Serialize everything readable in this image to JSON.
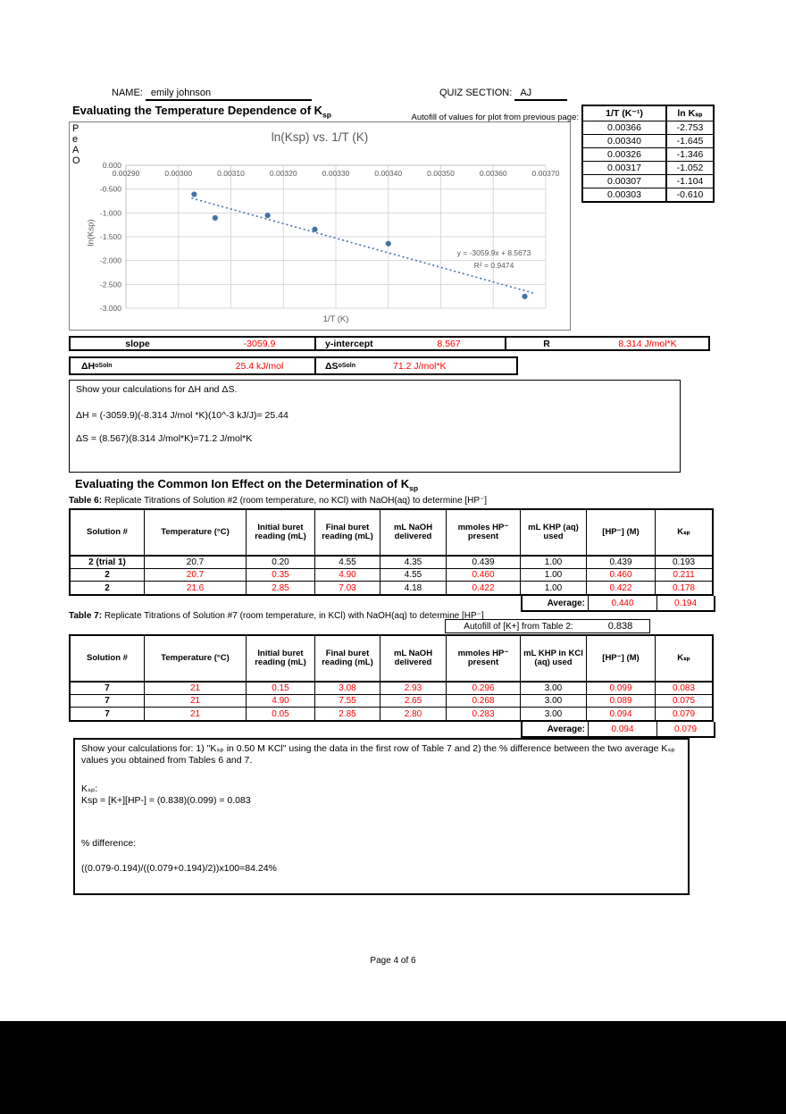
{
  "header": {
    "name_label": "NAME:",
    "name_value": "emily johnson",
    "quiz_label": "QUIZ SECTION:",
    "quiz_value": "AJ"
  },
  "section_ksp": {
    "title": "Evaluating the Temperature Dependence of K",
    "title_sub": "sp",
    "autofill_note": "Autofill of values for plot from previous page:",
    "side_table": {
      "headers": [
        "1/T   (K⁻¹)",
        "ln Kₛₚ"
      ],
      "rows": [
        [
          "0.00366",
          "-2.753"
        ],
        [
          "0.00340",
          "-1.645"
        ],
        [
          "0.00326",
          "-1.346"
        ],
        [
          "0.00317",
          "-1.052"
        ],
        [
          "0.00307",
          "-1.104"
        ],
        [
          "0.00303",
          "-0.610"
        ]
      ]
    },
    "results": {
      "slope_label": "slope",
      "slope_value": "-3059.9",
      "yint_label": "y-intercept",
      "yint_value": "8.567",
      "r_label": "R",
      "r_value": "8.314 J/mol*K",
      "dh_label_base": "ΔH",
      "dh_sup": "o",
      "dh_sub": "Soln",
      "dh_value": "25.4 kJ/mol",
      "ds_label_base": "ΔS",
      "ds_sup": "o",
      "ds_sub": "Soln",
      "ds_value": "71.2 J/mol*K"
    },
    "calc_box": {
      "prompt": "Show your calculations for ΔH  and  ΔS.",
      "line1": "ΔH = (-3059.9)(-8.314 J/mol *K)(10^-3 kJ/J)= 25.44",
      "line2": "ΔS = (8.567)(8.314 J/mol*K)=71.2 J/mol*K"
    }
  },
  "chart_data": {
    "type": "scatter",
    "title": "ln(Ksp)  vs.  1/T (K)",
    "xlabel": "1/T (K)",
    "ylabel": "ln(Ksp)",
    "xlim": [
      0.0029,
      0.0037
    ],
    "ylim": [
      -3.0,
      0.0
    ],
    "grid": true,
    "legend": "none",
    "overlay_letters": [
      "P",
      "e",
      "A",
      "O"
    ],
    "x_ticks": [
      {
        "v": 0.0029,
        "label": "0.00290"
      },
      {
        "v": 0.003,
        "label": "0.00300"
      },
      {
        "v": 0.0031,
        "label": "0.00310"
      },
      {
        "v": 0.0032,
        "label": "0.00320"
      },
      {
        "v": 0.0033,
        "label": "0.00330"
      },
      {
        "v": 0.0034,
        "label": "0.00340"
      },
      {
        "v": 0.0035,
        "label": "0.00350"
      },
      {
        "v": 0.0036,
        "label": "0.00360"
      },
      {
        "v": 0.0037,
        "label": "0.00370"
      }
    ],
    "y_ticks": [
      {
        "v": 0.0,
        "label": "0.000"
      },
      {
        "v": -0.5,
        "label": "-0.500"
      },
      {
        "v": -1.0,
        "label": "-1.000"
      },
      {
        "v": -1.5,
        "label": "-1.500"
      },
      {
        "v": -2.0,
        "label": "-2.000"
      },
      {
        "v": -2.5,
        "label": "-2.500"
      },
      {
        "v": -3.0,
        "label": "-3.000"
      }
    ],
    "points": [
      {
        "x": 0.00366,
        "y": -2.753
      },
      {
        "x": 0.0034,
        "y": -1.645
      },
      {
        "x": 0.00326,
        "y": -1.346
      },
      {
        "x": 0.00317,
        "y": -1.052
      },
      {
        "x": 0.00307,
        "y": -1.104
      },
      {
        "x": 0.00303,
        "y": -0.61
      }
    ],
    "trendline": {
      "slope": -3059.9,
      "intercept": 8.5673,
      "x_start": 0.003025,
      "x_end": 0.00368,
      "equation": "y = -3059.9x + 8.5673",
      "r_squared": "R² = 0.9474"
    },
    "marker_color": "#4472a8",
    "grid_color": "#d9d9d9",
    "axis_color": "#bfbfbf",
    "text_color": "#595959"
  },
  "section_common_ion": {
    "title": "Evaluating the Common Ion Effect on the Determination of K",
    "title_sub": "sp",
    "table6": {
      "caption_bold": "Table 6:",
      "caption_rest": " Replicate Titrations of Solution #2 (room temperature, no KCl) with NaOH(aq) to determine [HP⁻]",
      "headers": [
        "Solution #",
        "Temperature (°C)",
        "Initial buret reading (mL)",
        "Final buret reading (mL)",
        "mL NaOH delivered",
        "mmoles HP⁻ present",
        "mL KHP (aq) used",
        "[HP⁻] (M)",
        "Kₛₚ"
      ],
      "rows": [
        [
          {
            "t": "2 (trial 1)",
            "b": true
          },
          {
            "t": "20.7"
          },
          {
            "t": "0.20"
          },
          {
            "t": "4.55"
          },
          {
            "t": "4.35"
          },
          {
            "t": "0.439"
          },
          {
            "t": "1.00"
          },
          {
            "t": "0.439"
          },
          {
            "t": "0.193"
          }
        ],
        [
          {
            "t": "2",
            "b": true
          },
          {
            "t": "20.7",
            "r": true
          },
          {
            "t": "0.35",
            "r": true
          },
          {
            "t": "4.90",
            "r": true
          },
          {
            "t": "4.55"
          },
          {
            "t": "0.460",
            "r": true
          },
          {
            "t": "1.00"
          },
          {
            "t": "0.460",
            "r": true
          },
          {
            "t": "0.211",
            "r": true
          }
        ],
        [
          {
            "t": "2",
            "b": true
          },
          {
            "t": "21.6",
            "r": true
          },
          {
            "t": "2.85",
            "r": true
          },
          {
            "t": "7.03",
            "r": true
          },
          {
            "t": "4.18"
          },
          {
            "t": "0.422",
            "r": true
          },
          {
            "t": "1.00"
          },
          {
            "t": "0.422",
            "r": true
          },
          {
            "t": "0.178",
            "r": true
          }
        ]
      ],
      "average": {
        "label": "Average:",
        "hp": "0.440",
        "ksp": "0.194"
      }
    },
    "table7": {
      "caption_bold": "Table 7:",
      "caption_rest": " Replicate Titrations of Solution #7 (room temperature, in KCl) with NaOH(aq) to determine [HP⁻]",
      "autofill_label": "Autofill of [K+] from Table 2:",
      "autofill_value": "0.838",
      "headers": [
        "Solution #",
        "Temperature (°C)",
        "Initial buret reading (mL)",
        "Final buret reading (mL)",
        "mL NaOH delivered",
        "mmoles HP⁻ present",
        "mL KHP in KCl (aq) used",
        "[HP⁻] (M)",
        "Kₛₚ"
      ],
      "rows": [
        [
          {
            "t": "7",
            "b": true
          },
          {
            "t": "21",
            "r": true
          },
          {
            "t": "0.15",
            "r": true
          },
          {
            "t": "3.08",
            "r": true
          },
          {
            "t": "2.93",
            "r": true
          },
          {
            "t": "0.296",
            "r": true
          },
          {
            "t": "3.00"
          },
          {
            "t": "0.099",
            "r": true
          },
          {
            "t": "0.083",
            "r": true
          }
        ],
        [
          {
            "t": "7",
            "b": true
          },
          {
            "t": "21",
            "r": true
          },
          {
            "t": "4.90",
            "r": true
          },
          {
            "t": "7.55",
            "r": true
          },
          {
            "t": "2.65",
            "r": true
          },
          {
            "t": "0.268",
            "r": true
          },
          {
            "t": "3.00"
          },
          {
            "t": "0.089",
            "r": true
          },
          {
            "t": "0.075",
            "r": true
          }
        ],
        [
          {
            "t": "7",
            "b": true
          },
          {
            "t": "21",
            "r": true
          },
          {
            "t": "0.05",
            "r": true
          },
          {
            "t": "2.85",
            "r": true
          },
          {
            "t": "2.80",
            "r": true
          },
          {
            "t": "0.283",
            "r": true
          },
          {
            "t": "3.00"
          },
          {
            "t": "0.094",
            "r": true
          },
          {
            "t": "0.079",
            "r": true
          }
        ]
      ],
      "average": {
        "label": "Average:",
        "hp": "0.094",
        "ksp": "0.079"
      }
    },
    "calc_box2": {
      "prompt": "Show your calculations for: 1) \"Kₛₚ in 0.50 M KCl\" using the data in the first row of Table 7 and 2) the % difference between the two average Kₛₚ values you obtained from Tables 6 and 7.",
      "ksp_heading": "Kₛₚ:",
      "ksp_line": "Ksp = [K+][HP-]  = (0.838)(0.099) = 0.083",
      "diff_heading": "% difference:",
      "diff_line": "((0.079-0.194)/((0.079+0.194)/2))x100=84.24%"
    }
  },
  "footer": {
    "text": "Page 4 of 6"
  }
}
